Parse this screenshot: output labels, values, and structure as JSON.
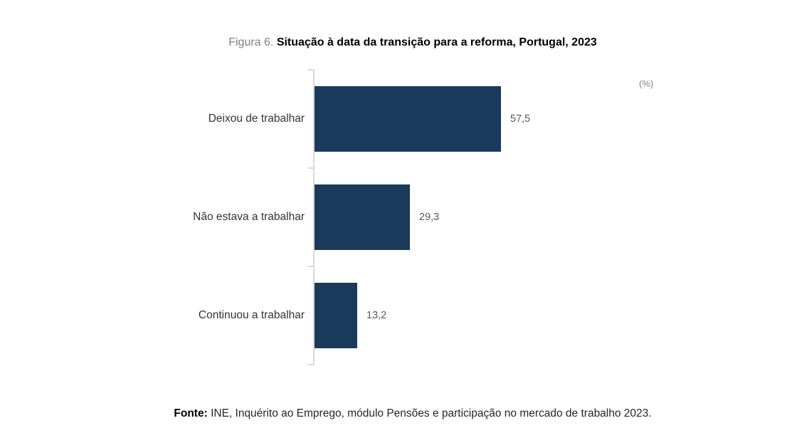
{
  "title": {
    "prefix": "Figura 6.",
    "main": "Situação à data da transição para a reforma, Portugal, 2023"
  },
  "unit_label": "(%)",
  "footer": {
    "prefix": "Fonte:",
    "text": "INE, Inquérito ao Emprego, módulo Pensões e participação no mercado de trabalho 2023."
  },
  "chart_data": {
    "type": "bar",
    "orientation": "horizontal",
    "title": "Situação à data da transição para a reforma, Portugal, 2023",
    "categories": [
      "Deixou de trabalhar",
      "Não estava a trabalhar",
      "Continuou a trabalhar"
    ],
    "values": [
      57.5,
      29.3,
      13.2
    ],
    "value_labels": [
      "57,5",
      "29,3",
      "13,2"
    ],
    "xlabel": "(%)",
    "ylabel": "",
    "xlim": [
      0,
      100
    ],
    "grid": false,
    "legend": "none",
    "bar_color": "#1a3a5c",
    "axis_color": "#d9d9d9",
    "value_label_color": "#595959"
  }
}
